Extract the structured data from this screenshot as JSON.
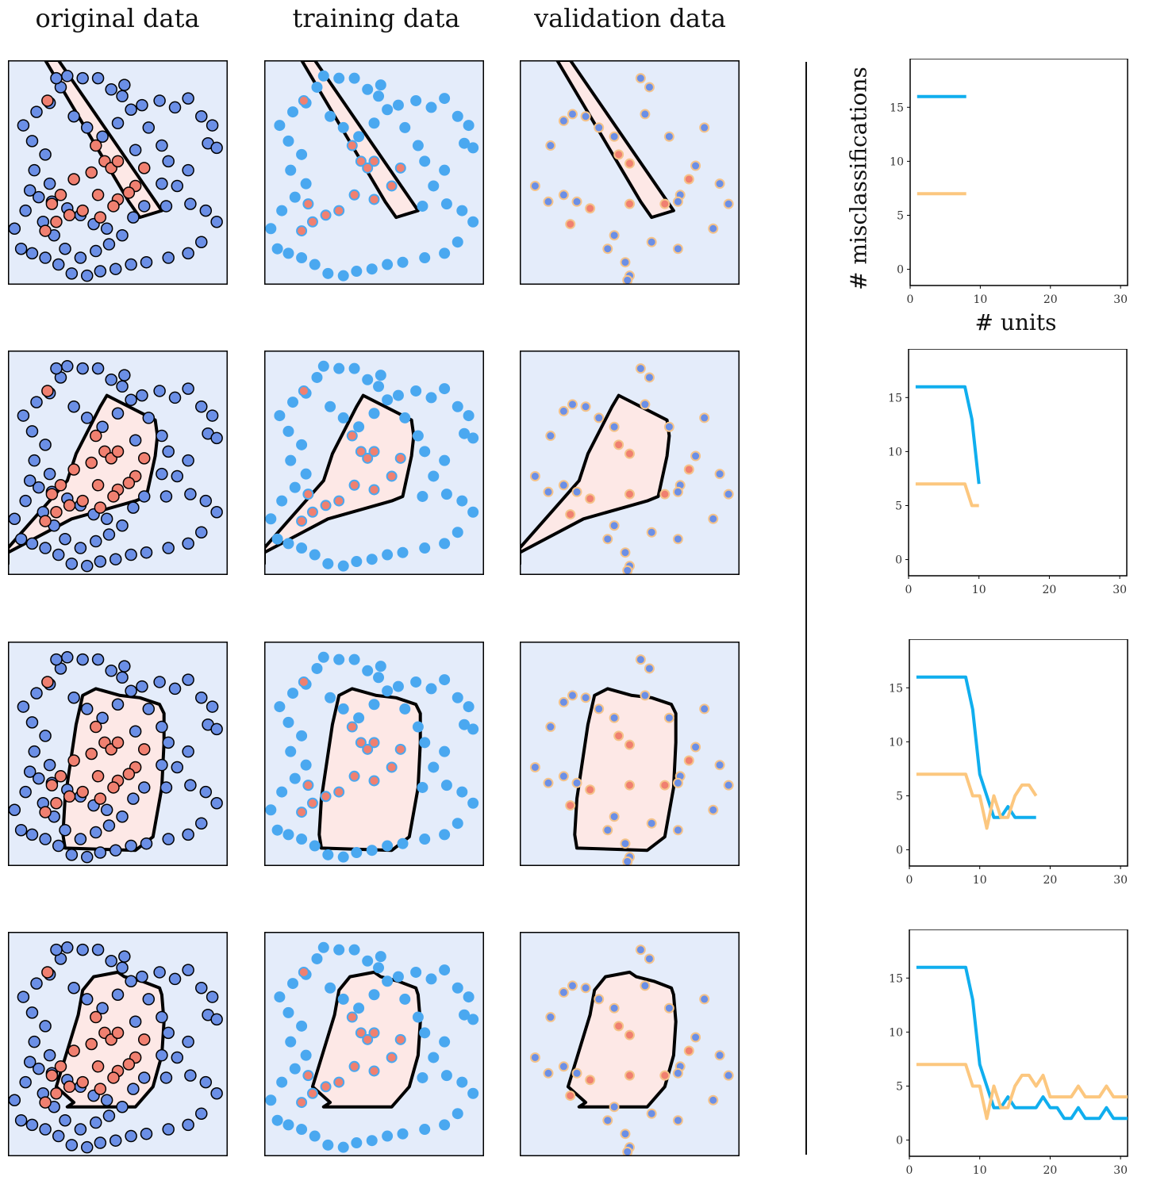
{
  "column_titles": [
    "original data",
    "training data",
    "validation data"
  ],
  "colors": {
    "background": "#e4ecfa",
    "region": "#fde8e6",
    "boundary": "#000000",
    "blue_point": "#6b8fe6",
    "red_point": "#f08070",
    "train_point": "#4aa8f0",
    "train_red": "#f08070",
    "valid_edge": "#f5c38a",
    "training_curve": "#10aeee",
    "validation_curve": "#fcc77f"
  },
  "points": {
    "blue": [
      [
        0.27,
        0.93
      ],
      [
        0.34,
        0.92
      ],
      [
        0.41,
        0.92
      ],
      [
        0.24,
        0.88
      ],
      [
        0.47,
        0.87
      ],
      [
        0.53,
        0.89
      ],
      [
        0.52,
        0.84
      ],
      [
        0.61,
        0.8
      ],
      [
        0.69,
        0.82
      ],
      [
        0.76,
        0.79
      ],
      [
        0.82,
        0.83
      ],
      [
        0.88,
        0.75
      ],
      [
        0.93,
        0.71
      ],
      [
        0.91,
        0.63
      ],
      [
        0.95,
        0.61
      ],
      [
        0.82,
        0.51
      ],
      [
        0.77,
        0.44
      ],
      [
        0.72,
        0.35
      ],
      [
        0.83,
        0.36
      ],
      [
        0.9,
        0.33
      ],
      [
        0.95,
        0.28
      ],
      [
        0.88,
        0.19
      ],
      [
        0.82,
        0.14
      ],
      [
        0.73,
        0.12
      ],
      [
        0.63,
        0.1
      ],
      [
        0.56,
        0.09
      ],
      [
        0.49,
        0.07
      ],
      [
        0.42,
        0.06
      ],
      [
        0.36,
        0.04
      ],
      [
        0.29,
        0.05
      ],
      [
        0.23,
        0.09
      ],
      [
        0.17,
        0.12
      ],
      [
        0.11,
        0.14
      ],
      [
        0.06,
        0.16
      ],
      [
        0.03,
        0.25
      ],
      [
        0.08,
        0.33
      ],
      [
        0.14,
        0.39
      ],
      [
        0.19,
        0.45
      ],
      [
        0.12,
        0.51
      ],
      [
        0.17,
        0.58
      ],
      [
        0.11,
        0.64
      ],
      [
        0.07,
        0.71
      ],
      [
        0.13,
        0.77
      ],
      [
        0.19,
        0.81
      ],
      [
        0.3,
        0.75
      ],
      [
        0.36,
        0.7
      ],
      [
        0.43,
        0.66
      ],
      [
        0.5,
        0.72
      ],
      [
        0.56,
        0.78
      ],
      [
        0.64,
        0.7
      ],
      [
        0.7,
        0.62
      ],
      [
        0.73,
        0.55
      ],
      [
        0.7,
        0.45
      ],
      [
        0.62,
        0.35
      ],
      [
        0.57,
        0.3
      ],
      [
        0.52,
        0.22
      ],
      [
        0.46,
        0.18
      ],
      [
        0.4,
        0.15
      ],
      [
        0.33,
        0.12
      ],
      [
        0.26,
        0.16
      ],
      [
        0.21,
        0.22
      ],
      [
        0.16,
        0.28
      ],
      [
        0.1,
        0.42
      ],
      [
        0.2,
        0.37
      ],
      [
        0.27,
        0.34
      ],
      [
        0.33,
        0.31
      ],
      [
        0.39,
        0.27
      ],
      [
        0.45,
        0.25
      ],
      [
        0.58,
        0.6
      ],
      [
        0.22,
        0.92
      ]
    ],
    "red": [
      [
        0.18,
        0.82
      ],
      [
        0.4,
        0.62
      ],
      [
        0.44,
        0.55
      ],
      [
        0.47,
        0.52
      ],
      [
        0.5,
        0.55
      ],
      [
        0.62,
        0.52
      ],
      [
        0.58,
        0.44
      ],
      [
        0.5,
        0.38
      ],
      [
        0.41,
        0.4
      ],
      [
        0.34,
        0.33
      ],
      [
        0.28,
        0.31
      ],
      [
        0.22,
        0.28
      ],
      [
        0.17,
        0.24
      ],
      [
        0.2,
        0.36
      ],
      [
        0.24,
        0.4
      ],
      [
        0.42,
        0.3
      ],
      [
        0.48,
        0.35
      ],
      [
        0.55,
        0.41
      ],
      [
        0.3,
        0.47
      ],
      [
        0.38,
        0.5
      ]
    ],
    "validation_blue": [
      [
        0.3,
        0.75
      ],
      [
        0.36,
        0.7
      ],
      [
        0.43,
        0.66
      ],
      [
        0.55,
        0.92
      ],
      [
        0.59,
        0.88
      ],
      [
        0.57,
        0.76
      ],
      [
        0.68,
        0.66
      ],
      [
        0.84,
        0.7
      ],
      [
        0.8,
        0.53
      ],
      [
        0.91,
        0.45
      ],
      [
        0.95,
        0.36
      ],
      [
        0.73,
        0.4
      ],
      [
        0.72,
        0.37
      ],
      [
        0.88,
        0.25
      ],
      [
        0.72,
        0.16
      ],
      [
        0.6,
        0.19
      ],
      [
        0.43,
        0.22
      ],
      [
        0.4,
        0.16
      ],
      [
        0.48,
        0.1
      ],
      [
        0.5,
        0.04
      ],
      [
        0.49,
        0.02
      ],
      [
        0.2,
        0.4
      ],
      [
        0.13,
        0.37
      ],
      [
        0.26,
        0.37
      ],
      [
        0.2,
        0.73
      ],
      [
        0.24,
        0.76
      ],
      [
        0.14,
        0.62
      ],
      [
        0.07,
        0.44
      ]
    ],
    "validation_red": [
      [
        0.45,
        0.58
      ],
      [
        0.5,
        0.54
      ],
      [
        0.77,
        0.47
      ],
      [
        0.66,
        0.36
      ],
      [
        0.5,
        0.36
      ],
      [
        0.32,
        0.34
      ],
      [
        0.23,
        0.27
      ]
    ]
  },
  "boundaries": [
    [
      [
        [
          0.17,
          1.0
        ],
        [
          0.23,
          1.0
        ],
        [
          0.7,
          0.33
        ],
        [
          0.6,
          0.3
        ],
        [
          0.55,
          0.37
        ]
      ]
    ],
    [
      [
        [
          0.0,
          0.05
        ],
        [
          0.0,
          0.1
        ],
        [
          0.29,
          0.25
        ],
        [
          0.58,
          0.33
        ],
        [
          0.63,
          0.35
        ],
        [
          0.67,
          0.53
        ],
        [
          0.68,
          0.62
        ],
        [
          0.67,
          0.69
        ],
        [
          0.45,
          0.8
        ],
        [
          0.42,
          0.75
        ],
        [
          0.31,
          0.54
        ],
        [
          0.27,
          0.42
        ],
        [
          0.0,
          0.12
        ]
      ]
    ],
    [
      [
        [
          0.26,
          0.08
        ],
        [
          0.58,
          0.07
        ],
        [
          0.66,
          0.13
        ],
        [
          0.7,
          0.35
        ],
        [
          0.71,
          0.55
        ],
        [
          0.71,
          0.68
        ],
        [
          0.69,
          0.72
        ],
        [
          0.6,
          0.75
        ],
        [
          0.51,
          0.76
        ],
        [
          0.4,
          0.79
        ],
        [
          0.34,
          0.76
        ],
        [
          0.31,
          0.63
        ],
        [
          0.26,
          0.3
        ],
        [
          0.25,
          0.14
        ]
      ]
    ],
    [
      [
        [
          0.27,
          0.22
        ],
        [
          0.58,
          0.22
        ],
        [
          0.66,
          0.31
        ],
        [
          0.7,
          0.45
        ],
        [
          0.71,
          0.6
        ],
        [
          0.7,
          0.72
        ],
        [
          0.69,
          0.75
        ],
        [
          0.61,
          0.78
        ],
        [
          0.53,
          0.8
        ],
        [
          0.5,
          0.82
        ],
        [
          0.39,
          0.8
        ],
        [
          0.34,
          0.74
        ],
        [
          0.32,
          0.63
        ],
        [
          0.22,
          0.31
        ],
        [
          0.3,
          0.24
        ]
      ]
    ]
  ],
  "chart_data": [
    {
      "type": "line",
      "xlabel": "# units",
      "ylabel": "# misclassifications",
      "xlim": [
        0,
        31
      ],
      "ylim": [
        -1.5,
        19.5
      ],
      "xticks": [
        0,
        10,
        20,
        30
      ],
      "yticks": [
        0,
        5,
        10,
        15
      ],
      "series": [
        {
          "x": [
            1,
            2,
            3,
            4,
            5,
            6,
            7,
            8
          ],
          "values": [
            16,
            16,
            16,
            16,
            16,
            16,
            16,
            16
          ],
          "color": "#10aeee"
        },
        {
          "x": [
            1,
            2,
            3,
            4,
            5,
            6,
            7,
            8
          ],
          "values": [
            7,
            7,
            7,
            7,
            7,
            7,
            7,
            7
          ],
          "color": "#fcc77f"
        }
      ]
    },
    {
      "type": "line",
      "xlabel": "",
      "ylabel": "",
      "xlim": [
        0,
        31
      ],
      "ylim": [
        -1.5,
        19.5
      ],
      "xticks": [
        0,
        10,
        20,
        30
      ],
      "yticks": [
        0,
        5,
        10,
        15
      ],
      "series": [
        {
          "x": [
            1,
            2,
            3,
            4,
            5,
            6,
            7,
            8,
            9,
            10
          ],
          "values": [
            16,
            16,
            16,
            16,
            16,
            16,
            16,
            16,
            13,
            7
          ],
          "color": "#10aeee"
        },
        {
          "x": [
            1,
            2,
            3,
            4,
            5,
            6,
            7,
            8,
            9,
            10
          ],
          "values": [
            7,
            7,
            7,
            7,
            7,
            7,
            7,
            7,
            5,
            5
          ],
          "color": "#fcc77f"
        }
      ]
    },
    {
      "type": "line",
      "xlabel": "",
      "ylabel": "",
      "xlim": [
        0,
        31
      ],
      "ylim": [
        -1.5,
        19.5
      ],
      "xticks": [
        0,
        10,
        20,
        30
      ],
      "yticks": [
        0,
        5,
        10,
        15
      ],
      "series": [
        {
          "x": [
            1,
            2,
            3,
            4,
            5,
            6,
            7,
            8,
            9,
            10,
            11,
            12,
            13,
            14,
            15,
            16,
            17,
            18
          ],
          "values": [
            16,
            16,
            16,
            16,
            16,
            16,
            16,
            16,
            13,
            7,
            5,
            3,
            3,
            4,
            3,
            3,
            3,
            3
          ],
          "color": "#10aeee"
        },
        {
          "x": [
            1,
            2,
            3,
            4,
            5,
            6,
            7,
            8,
            9,
            10,
            11,
            12,
            13,
            14,
            15,
            16,
            17,
            18
          ],
          "values": [
            7,
            7,
            7,
            7,
            7,
            7,
            7,
            7,
            5,
            5,
            2,
            5,
            3,
            3,
            5,
            6,
            6,
            5
          ],
          "color": "#fcc77f"
        }
      ]
    },
    {
      "type": "line",
      "xlabel": "",
      "ylabel": "",
      "xlim": [
        0,
        31
      ],
      "ylim": [
        -1.5,
        19.5
      ],
      "xticks": [
        0,
        10,
        20,
        30
      ],
      "yticks": [
        0,
        5,
        10,
        15
      ],
      "series": [
        {
          "x": [
            1,
            2,
            3,
            4,
            5,
            6,
            7,
            8,
            9,
            10,
            11,
            12,
            13,
            14,
            15,
            16,
            17,
            18,
            19,
            20,
            21,
            22,
            23,
            24,
            25,
            26,
            27,
            28,
            29,
            30,
            31
          ],
          "values": [
            16,
            16,
            16,
            16,
            16,
            16,
            16,
            16,
            13,
            7,
            5,
            3,
            3,
            4,
            3,
            3,
            3,
            3,
            4,
            3,
            3,
            2,
            2,
            3,
            2,
            2,
            2,
            3,
            2,
            2,
            2
          ],
          "color": "#10aeee"
        },
        {
          "x": [
            1,
            2,
            3,
            4,
            5,
            6,
            7,
            8,
            9,
            10,
            11,
            12,
            13,
            14,
            15,
            16,
            17,
            18,
            19,
            20,
            21,
            22,
            23,
            24,
            25,
            26,
            27,
            28,
            29,
            30,
            31
          ],
          "values": [
            7,
            7,
            7,
            7,
            7,
            7,
            7,
            7,
            5,
            5,
            2,
            5,
            3,
            3,
            5,
            6,
            6,
            5,
            6,
            4,
            4,
            4,
            4,
            5,
            4,
            4,
            4,
            5,
            4,
            4,
            4
          ],
          "color": "#fcc77f"
        }
      ]
    }
  ]
}
